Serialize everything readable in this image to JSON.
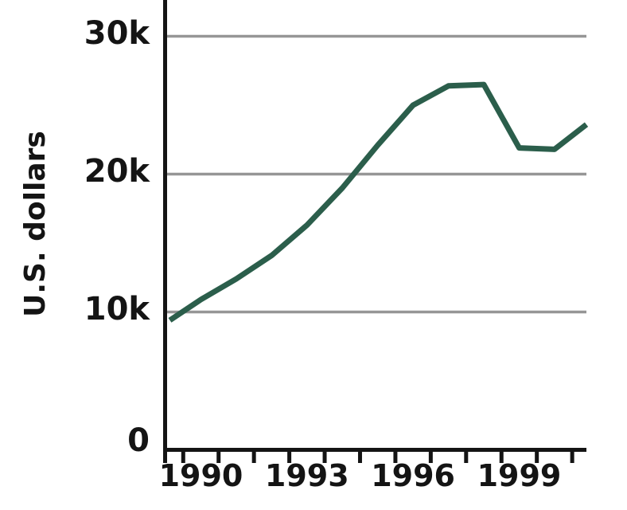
{
  "chart_data": {
    "type": "line",
    "title": "",
    "xlabel": "",
    "ylabel": "U.S. dollars",
    "x": [
      1989,
      1990,
      1991,
      1992,
      1993,
      1994,
      1995,
      1996,
      1997,
      1998,
      1999,
      2000,
      2001
    ],
    "series": [
      {
        "name": "U.S. dollars",
        "values": [
          9400,
          10900,
          12400,
          14100,
          16300,
          19000,
          22100,
          25000,
          26400,
          26500,
          21900,
          21800,
          23600
        ]
      }
    ],
    "x_tick_labels": [
      {
        "label": "1990",
        "year": 1990
      },
      {
        "label": "1993",
        "year": 1993
      },
      {
        "label": "1996",
        "year": 1996
      },
      {
        "label": "1999",
        "year": 1999
      }
    ],
    "y_tick_labels": [
      {
        "label": "0",
        "value": 0
      },
      {
        "label": "10k",
        "value": 10000
      },
      {
        "label": "20k",
        "value": 20000
      },
      {
        "label": "30k",
        "value": 30000
      }
    ],
    "ylim": [
      0,
      32500
    ],
    "xlim": [
      1989,
      2001
    ],
    "grid": "horizontal-only",
    "legend": "none",
    "colors": {
      "line": "#2b5e4b",
      "axis": "#141414",
      "grid": "#969696",
      "text": "#141414",
      "background": "#ffffff"
    }
  }
}
